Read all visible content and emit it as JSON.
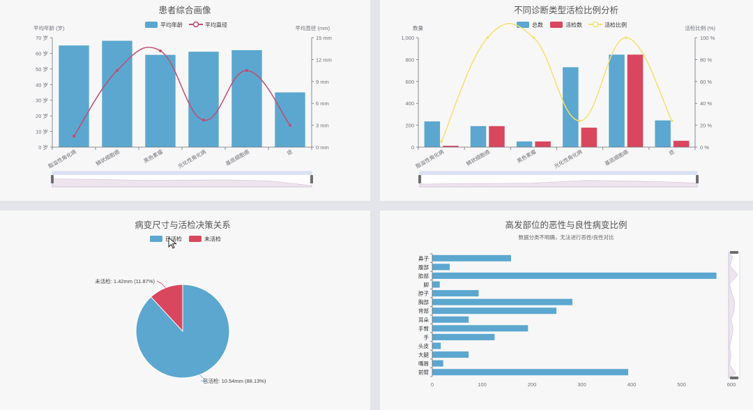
{
  "colors": {
    "blue": "#5ba7cf",
    "red": "#d9475f",
    "yellow": "#f3e16a",
    "line_red": "#c24b70",
    "axis": "#6e7079",
    "grid": "#e6e6e6",
    "text": "#333333"
  },
  "chart_data": [
    {
      "type": "bar",
      "title": "患者综合画像",
      "legend": [
        "平均年龄",
        "平均直径"
      ],
      "y_left": {
        "label": "平均年龄 (岁)",
        "unit": " 岁",
        "ylim": [
          0,
          70
        ],
        "ticks": [
          0,
          10,
          20,
          30,
          40,
          50,
          60,
          70
        ]
      },
      "y_right": {
        "label": "平均直径 (mm)",
        "unit": " mm",
        "ylim": [
          0,
          15
        ],
        "ticks": [
          0,
          3,
          6,
          9,
          12,
          15
        ]
      },
      "categories": [
        "脂溢性角化病",
        "鳞状细胞癌",
        "黑色素瘤",
        "光化性角化病",
        "基底细胞癌",
        "痣"
      ],
      "series": [
        {
          "name": "平均年龄",
          "kind": "bar",
          "axis": "left",
          "values": [
            65,
            68,
            59,
            61,
            62,
            35
          ]
        },
        {
          "name": "平均直径",
          "kind": "line",
          "axis": "right",
          "values": [
            1.5,
            10.5,
            13.2,
            3.7,
            10.5,
            3.0
          ]
        }
      ],
      "grid": false,
      "legend_position": "top-center",
      "datazoom": true
    },
    {
      "type": "bar",
      "title": "不同诊断类型活检比例分析",
      "legend": [
        "总数",
        "活检数",
        "活检比例"
      ],
      "y_left": {
        "label": "数量",
        "ylim": [
          0,
          1000
        ],
        "ticks": [
          "0",
          "200",
          "400",
          "600",
          "800",
          "1,000"
        ]
      },
      "y_right": {
        "label": "活检比例 (%)",
        "ylim": [
          0,
          100
        ],
        "ticks": [
          "0 %",
          "20 %",
          "40 %",
          "60 %",
          "80 %",
          "100 %"
        ]
      },
      "categories": [
        "脂溢性角化病",
        "鳞状细胞癌",
        "黑色素瘤",
        "光化性角化病",
        "基底细胞癌",
        "痣"
      ],
      "series": [
        {
          "name": "总数",
          "kind": "bar",
          "axis": "left",
          "values": [
            235,
            192,
            52,
            730,
            845,
            244
          ]
        },
        {
          "name": "活检数",
          "kind": "bar",
          "axis": "left",
          "values": [
            12,
            192,
            52,
            178,
            845,
            58
          ]
        },
        {
          "name": "活检比例",
          "kind": "line",
          "axis": "right",
          "values": [
            5,
            100,
            100,
            24,
            100,
            24
          ]
        }
      ],
      "grid": false,
      "legend_position": "top-center",
      "datazoom": true
    },
    {
      "type": "pie",
      "title": "病变尺寸与活检决策关系",
      "legend": [
        "已活检",
        "未活检"
      ],
      "slices": [
        {
          "name": "已活检",
          "value": 10.54,
          "percent": 88.13,
          "label": "已活检: 10.54mm (88.13%)"
        },
        {
          "name": "未活检",
          "value": 1.42,
          "percent": 11.87,
          "label": "未活检: 1.42mm (11.87%)"
        }
      ],
      "legend_position": "top-center"
    },
    {
      "type": "bar",
      "orientation": "horizontal",
      "title": "高发部位的恶性与良性病变比例",
      "subtitle": "数据分类不明确，无法进行恶性/良性对比",
      "categories": [
        "鼻子",
        "腹部",
        "脸部",
        "脚",
        "脖子",
        "胸部",
        "背部",
        "耳朵",
        "手臂",
        "手",
        "头皮",
        "大腿",
        "嘴唇",
        "前臂"
      ],
      "values": [
        158,
        35,
        570,
        15,
        93,
        281,
        249,
        73,
        192,
        125,
        17,
        73,
        22,
        393
      ],
      "xlim": [
        0,
        600
      ],
      "x_ticks": [
        0,
        100,
        200,
        300,
        400,
        500,
        600
      ],
      "grid": false,
      "datazoom": true
    }
  ]
}
